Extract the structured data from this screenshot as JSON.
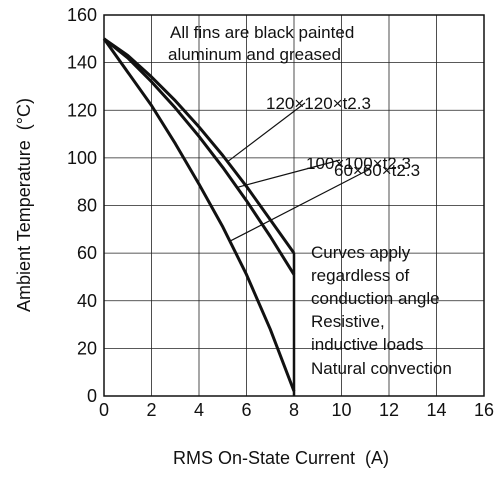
{
  "chart_data": {
    "type": "line",
    "xlabel": "RMS On-State Current  (A)",
    "ylabel": "Ambient Temperature  (°C)",
    "xlim": [
      0,
      16
    ],
    "ylim": [
      0,
      160
    ],
    "x_ticks": [
      0,
      2,
      4,
      6,
      8,
      10,
      12,
      14,
      16
    ],
    "y_ticks": [
      0,
      20,
      40,
      60,
      80,
      100,
      120,
      140,
      160
    ],
    "grid": true,
    "series": [
      {
        "name": "120×120×t2.3",
        "x": [
          0,
          1,
          2,
          3,
          4,
          5,
          6,
          7,
          8
        ],
        "y": [
          150,
          143,
          134,
          124,
          113,
          101,
          88,
          74,
          60
        ]
      },
      {
        "name": "100×100×t2.3",
        "x": [
          0,
          1,
          2,
          3,
          4,
          5,
          6,
          7,
          8
        ],
        "y": [
          150,
          142,
          132,
          121,
          109,
          96,
          82,
          67,
          51
        ]
      },
      {
        "name": "60×60×t2.3",
        "x": [
          0,
          1,
          2,
          3,
          4,
          5,
          6,
          7,
          8
        ],
        "y": [
          150,
          136,
          122,
          106,
          89,
          71,
          51,
          28,
          2
        ]
      }
    ],
    "annotations": {
      "top_note": [
        "All fins are black painted",
        "aluminum and greased"
      ],
      "right_note": [
        "Curves apply",
        "regardless of",
        "conduction angle",
        "Resistive,",
        "inductive loads",
        "Natural convection"
      ]
    }
  }
}
